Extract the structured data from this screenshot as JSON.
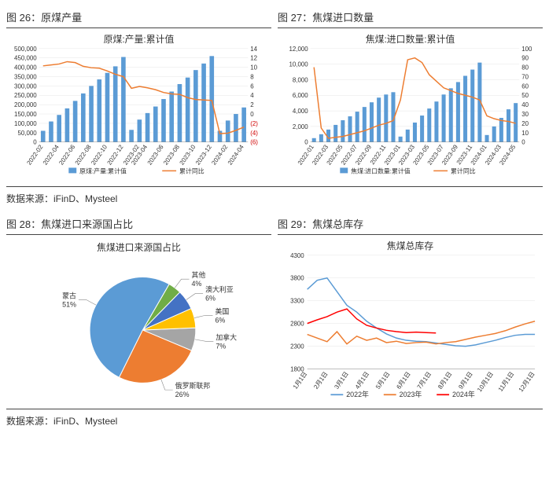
{
  "source_text": "数据来源：iFinD、Mysteel",
  "fig26": {
    "caption": "图 26：原煤产量",
    "type": "bar+line",
    "title": "原煤:产量:累计值",
    "title_fontsize": 12,
    "title_color": "#333333",
    "background_color": "#ffffff",
    "grid_color": "#e6e6e6",
    "axis_label_fontsize": 8,
    "axis_label_color": "#333333",
    "x_labels": [
      "2022-02",
      "2022-04",
      "2022-06",
      "2022-08",
      "2022-10",
      "2022-12",
      "2023-02",
      "2023-04",
      "2023-06",
      "2023-08",
      "2023-10",
      "2023-12",
      "2024-02",
      "2024-04"
    ],
    "y_left": {
      "label": "",
      "ylim": [
        0,
        500000
      ],
      "ytick_step": 50000
    },
    "y_right": {
      "label": "",
      "ylim": [
        -6,
        14
      ],
      "ytick_step": 2,
      "neg_color": "#d00000"
    },
    "bar_series": {
      "name": "原煤:产量:累计值",
      "color": "#5b9bd5",
      "bar_width": 0.55,
      "values": [
        60000,
        110000,
        145000,
        180000,
        220000,
        260000,
        300000,
        335000,
        370000,
        405000,
        455000,
        65000,
        120000,
        155000,
        190000,
        230000,
        270000,
        310000,
        345000,
        385000,
        420000,
        460000,
        60000,
        115000,
        150000,
        185000
      ]
    },
    "line_series": {
      "name": "累计同比",
      "color": "#ed7d31",
      "line_width": 1.5,
      "marker": "none",
      "values": [
        10.3,
        10.5,
        10.7,
        11.2,
        11.0,
        10.2,
        9.9,
        9.8,
        9.2,
        8.5,
        8.0,
        5.5,
        5.9,
        5.6,
        5.2,
        4.6,
        4.3,
        4.2,
        3.5,
        3.1,
        3.0,
        2.9,
        -4.2,
        -4.1,
        -3.5,
        -2.8
      ]
    },
    "legend": {
      "position": "bottom",
      "fontsize": 8
    }
  },
  "fig27": {
    "caption": "图 27：焦煤进口数量",
    "type": "bar+line",
    "title": "焦煤:进口数量:累计值",
    "title_fontsize": 12,
    "title_color": "#333333",
    "background_color": "#ffffff",
    "grid_color": "#e6e6e6",
    "axis_label_fontsize": 8,
    "axis_label_color": "#333333",
    "x_labels": [
      "2022-01",
      "2022-03",
      "2022-05",
      "2022-07",
      "2022-09",
      "2022-11",
      "2023-01",
      "2023-03",
      "2023-05",
      "2023-07",
      "2023-09",
      "2023-11",
      "2024-01",
      "2024-03",
      "2024-05"
    ],
    "y_left": {
      "label": "",
      "ylim": [
        0,
        12000
      ],
      "ytick_step": 2000
    },
    "y_right": {
      "label": "",
      "ylim": [
        0,
        100
      ],
      "ytick_step": 10
    },
    "bar_series": {
      "name": "焦煤:进口数量:累计值",
      "color": "#5b9bd5",
      "bar_width": 0.55,
      "values": [
        500,
        1000,
        1600,
        2200,
        2800,
        3300,
        3900,
        4500,
        5100,
        5700,
        6100,
        6400,
        700,
        1600,
        2500,
        3400,
        4300,
        5200,
        6100,
        6900,
        7700,
        8500,
        9300,
        10200,
        900,
        2000,
        3100,
        4200,
        5000
      ]
    },
    "line_series": {
      "name": "累计同比",
      "color": "#ed7d31",
      "line_width": 1.5,
      "marker": "none",
      "values": [
        80,
        15,
        4,
        5,
        6,
        8,
        10,
        12,
        15,
        18,
        20,
        23,
        45,
        88,
        90,
        85,
        72,
        65,
        58,
        55,
        52,
        50,
        48,
        45,
        28,
        25,
        23,
        22,
        20
      ]
    },
    "legend": {
      "position": "bottom",
      "fontsize": 8
    }
  },
  "fig28": {
    "caption": "图 28：焦煤进口来源国占比",
    "type": "pie",
    "title": "焦煤进口来源国占比",
    "title_fontsize": 12,
    "title_color": "#333333",
    "background_color": "#ffffff",
    "label_fontsize": 9,
    "label_color": "#333333",
    "start_angle_deg": 60,
    "slices": [
      {
        "label": "蒙古",
        "pct": 51,
        "color": "#5b9bd5"
      },
      {
        "label": "俄罗斯联邦",
        "pct": 26,
        "color": "#ed7d31"
      },
      {
        "label": "加拿大",
        "pct": 7,
        "color": "#a5a5a5"
      },
      {
        "label": "美国",
        "pct": 6,
        "color": "#ffc000"
      },
      {
        "label": "澳大利亚",
        "pct": 6,
        "color": "#4472c4"
      },
      {
        "label": "其他",
        "pct": 4,
        "color": "#70ad47"
      }
    ]
  },
  "fig29": {
    "caption": "图 29：焦煤总库存",
    "type": "line",
    "title": "焦煤总库存",
    "title_fontsize": 12,
    "title_color": "#333333",
    "background_color": "#ffffff",
    "grid_color": "#e6e6e6",
    "axis_label_fontsize": 8,
    "axis_label_color": "#333333",
    "x_labels": [
      "1月1日",
      "2月1日",
      "3月1日",
      "4月1日",
      "5月1日",
      "6月1日",
      "7月1日",
      "8月1日",
      "9月1日",
      "10月1日",
      "11月1日",
      "12月1日"
    ],
    "y": {
      "ylim": [
        1800,
        4300
      ],
      "ytick_step": 500
    },
    "ticks_y": [
      1800,
      2300,
      2800,
      3300,
      3800,
      4300
    ],
    "line_width": 1.5,
    "series": [
      {
        "name": "2022年",
        "color": "#5b9bd5",
        "values": [
          3550,
          3750,
          3800,
          3500,
          3200,
          3050,
          2850,
          2700,
          2570,
          2480,
          2430,
          2410,
          2400,
          2370,
          2340,
          2310,
          2300,
          2330,
          2380,
          2430,
          2490,
          2540,
          2560,
          2560
        ]
      },
      {
        "name": "2023年",
        "color": "#ed7d31",
        "values": [
          2560,
          2480,
          2400,
          2620,
          2350,
          2520,
          2430,
          2480,
          2380,
          2410,
          2360,
          2380,
          2390,
          2350,
          2380,
          2400,
          2450,
          2500,
          2540,
          2580,
          2640,
          2720,
          2790,
          2850
        ]
      },
      {
        "name": "2024年",
        "color": "#ff0000",
        "values": [
          2800,
          2880,
          2950,
          3050,
          3120,
          2900,
          2760,
          2700,
          2650,
          2620,
          2600,
          2610,
          2600,
          2590
        ]
      }
    ],
    "legend": {
      "position": "bottom",
      "fontsize": 9
    }
  }
}
